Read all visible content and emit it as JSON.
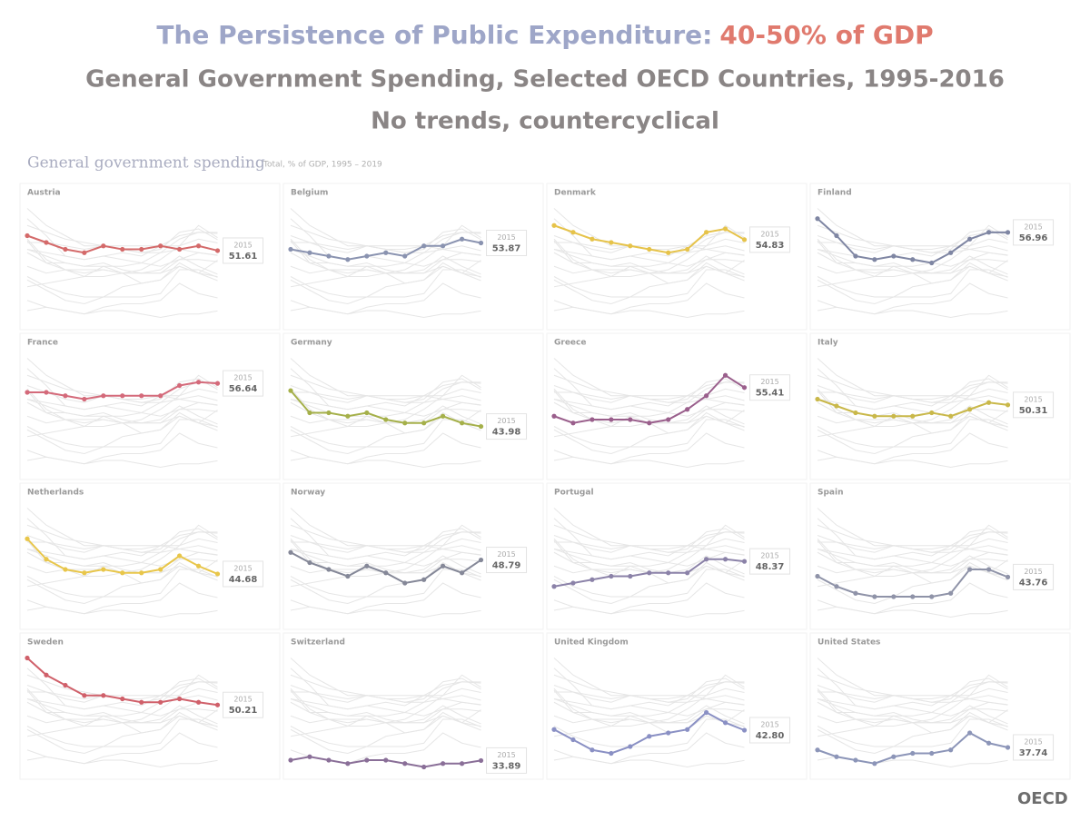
{
  "chart_data": {
    "type": "line",
    "title": "The Persistence of Public Expenditure:",
    "title_highlight": "40-50% of GDP",
    "subtitle": "General Government Spending, Selected OECD Countries, 1995-2016",
    "subtitle2": "No trends, countercyclical",
    "chart_title": "General government spending",
    "chart_subtitle": "Total, % of GDP, 1995 – 2019",
    "source": "OECD",
    "x": [
      1995,
      1997,
      1999,
      2001,
      2003,
      2005,
      2007,
      2009,
      2011,
      2013,
      2015
    ],
    "xlim": [
      1995,
      2016
    ],
    "ylim": [
      30,
      66
    ],
    "series": [
      {
        "name": "Austria",
        "color": "#d46a6a",
        "values": [
          56,
          54,
          52,
          51,
          53,
          52,
          52,
          53,
          52,
          53,
          51.61
        ]
      },
      {
        "name": "Belgium",
        "color": "#8a93b0",
        "values": [
          52,
          51,
          50,
          49,
          50,
          51,
          50,
          53,
          53,
          55,
          53.87
        ]
      },
      {
        "name": "Denmark",
        "color": "#e6c34a",
        "values": [
          59,
          57,
          55,
          54,
          53,
          52,
          51,
          52,
          57,
          58,
          54.83
        ]
      },
      {
        "name": "Finland",
        "color": "#7f86a3",
        "values": [
          61,
          56,
          50,
          49,
          50,
          49,
          48,
          51,
          55,
          57,
          56.96
        ]
      },
      {
        "name": "France",
        "color": "#d46a7a",
        "values": [
          54,
          54,
          53,
          52,
          53,
          53,
          53,
          53,
          56,
          57,
          56.64
        ]
      },
      {
        "name": "Germany",
        "color": "#a5b04a",
        "values": [
          54.5,
          48,
          48,
          47,
          48,
          46,
          45,
          45,
          47,
          45,
          43.98
        ]
      },
      {
        "name": "Greece",
        "color": "#9a5f8c",
        "values": [
          47,
          45,
          46,
          46,
          46,
          45,
          46,
          49,
          53,
          59,
          55.41
        ]
      },
      {
        "name": "Italy",
        "color": "#c9b84a",
        "values": [
          52,
          50,
          48,
          47,
          47,
          47,
          48,
          47,
          49,
          51,
          50.31
        ]
      },
      {
        "name": "Netherlands",
        "color": "#e8c64a",
        "values": [
          55,
          49,
          46,
          45,
          46,
          45,
          45,
          46,
          50,
          47,
          44.68
        ]
      },
      {
        "name": "Norway",
        "color": "#858898",
        "values": [
          51,
          48,
          46,
          44,
          47,
          45,
          42,
          43,
          47,
          45,
          48.79
        ]
      },
      {
        "name": "Portugal",
        "color": "#8b82a8",
        "values": [
          41,
          42,
          43,
          44,
          44,
          45,
          45,
          45,
          49,
          49,
          48.37
        ]
      },
      {
        "name": "Spain",
        "color": "#8f93a8",
        "values": [
          44,
          41,
          39,
          38,
          38,
          38,
          38,
          39,
          46,
          46,
          43.76
        ]
      },
      {
        "name": "Sweden",
        "color": "#d0606a",
        "values": [
          64,
          59,
          56,
          53,
          53,
          52,
          51,
          51,
          52,
          51,
          50.21
        ]
      },
      {
        "name": "Switzerland",
        "color": "#8a6f98",
        "values": [
          34,
          35,
          34,
          33,
          34,
          34,
          33,
          32,
          33,
          33,
          33.89
        ]
      },
      {
        "name": "United Kingdom",
        "color": "#8a90c4",
        "values": [
          43,
          40,
          37,
          36,
          38,
          41,
          42,
          43,
          48,
          45,
          42.8
        ],
        "value_labels": [
          null,
          null,
          null,
          null,
          null,
          null,
          null,
          null,
          null,
          null,
          "42.80"
        ]
      },
      {
        "name": "United States",
        "color": "#8c95b8",
        "values": [
          37,
          35,
          34,
          33,
          35,
          36,
          36,
          37,
          42,
          39,
          37.74
        ]
      }
    ]
  }
}
